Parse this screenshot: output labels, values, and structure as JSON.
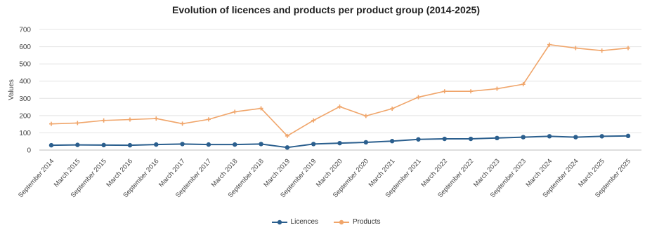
{
  "chart_data": {
    "type": "line",
    "title": "Evolution of licences and products per product group (2014-2025)",
    "xlabel": "",
    "ylabel": "Values",
    "ylim": [
      0,
      700
    ],
    "yticks": [
      0,
      100,
      200,
      300,
      400,
      500,
      600,
      700
    ],
    "grid": true,
    "legend_position": "bottom",
    "categories": [
      "September 2014",
      "March 2015",
      "September 2015",
      "March 2016",
      "September 2016",
      "March 2017",
      "September 2017",
      "March 2018",
      "September 2018",
      "March 2019",
      "September 2019",
      "March 2020",
      "September 2020",
      "March 2021",
      "September 2021",
      "March 2022",
      "September 2022",
      "March 2023",
      "September 2023",
      "March 2024",
      "September 2024",
      "March 2025",
      "September 2025"
    ],
    "series": [
      {
        "name": "Licences",
        "color": "#2b5f8e",
        "values": [
          28,
          30,
          29,
          28,
          32,
          35,
          32,
          32,
          35,
          15,
          35,
          40,
          45,
          52,
          62,
          65,
          65,
          70,
          75,
          80,
          75,
          80,
          82
        ]
      },
      {
        "name": "Products",
        "color": "#f0a56a",
        "values": [
          152,
          157,
          172,
          177,
          183,
          153,
          178,
          222,
          242,
          82,
          172,
          252,
          198,
          240,
          307,
          341,
          341,
          356,
          382,
          612,
          592,
          577,
          592
        ]
      }
    ]
  }
}
